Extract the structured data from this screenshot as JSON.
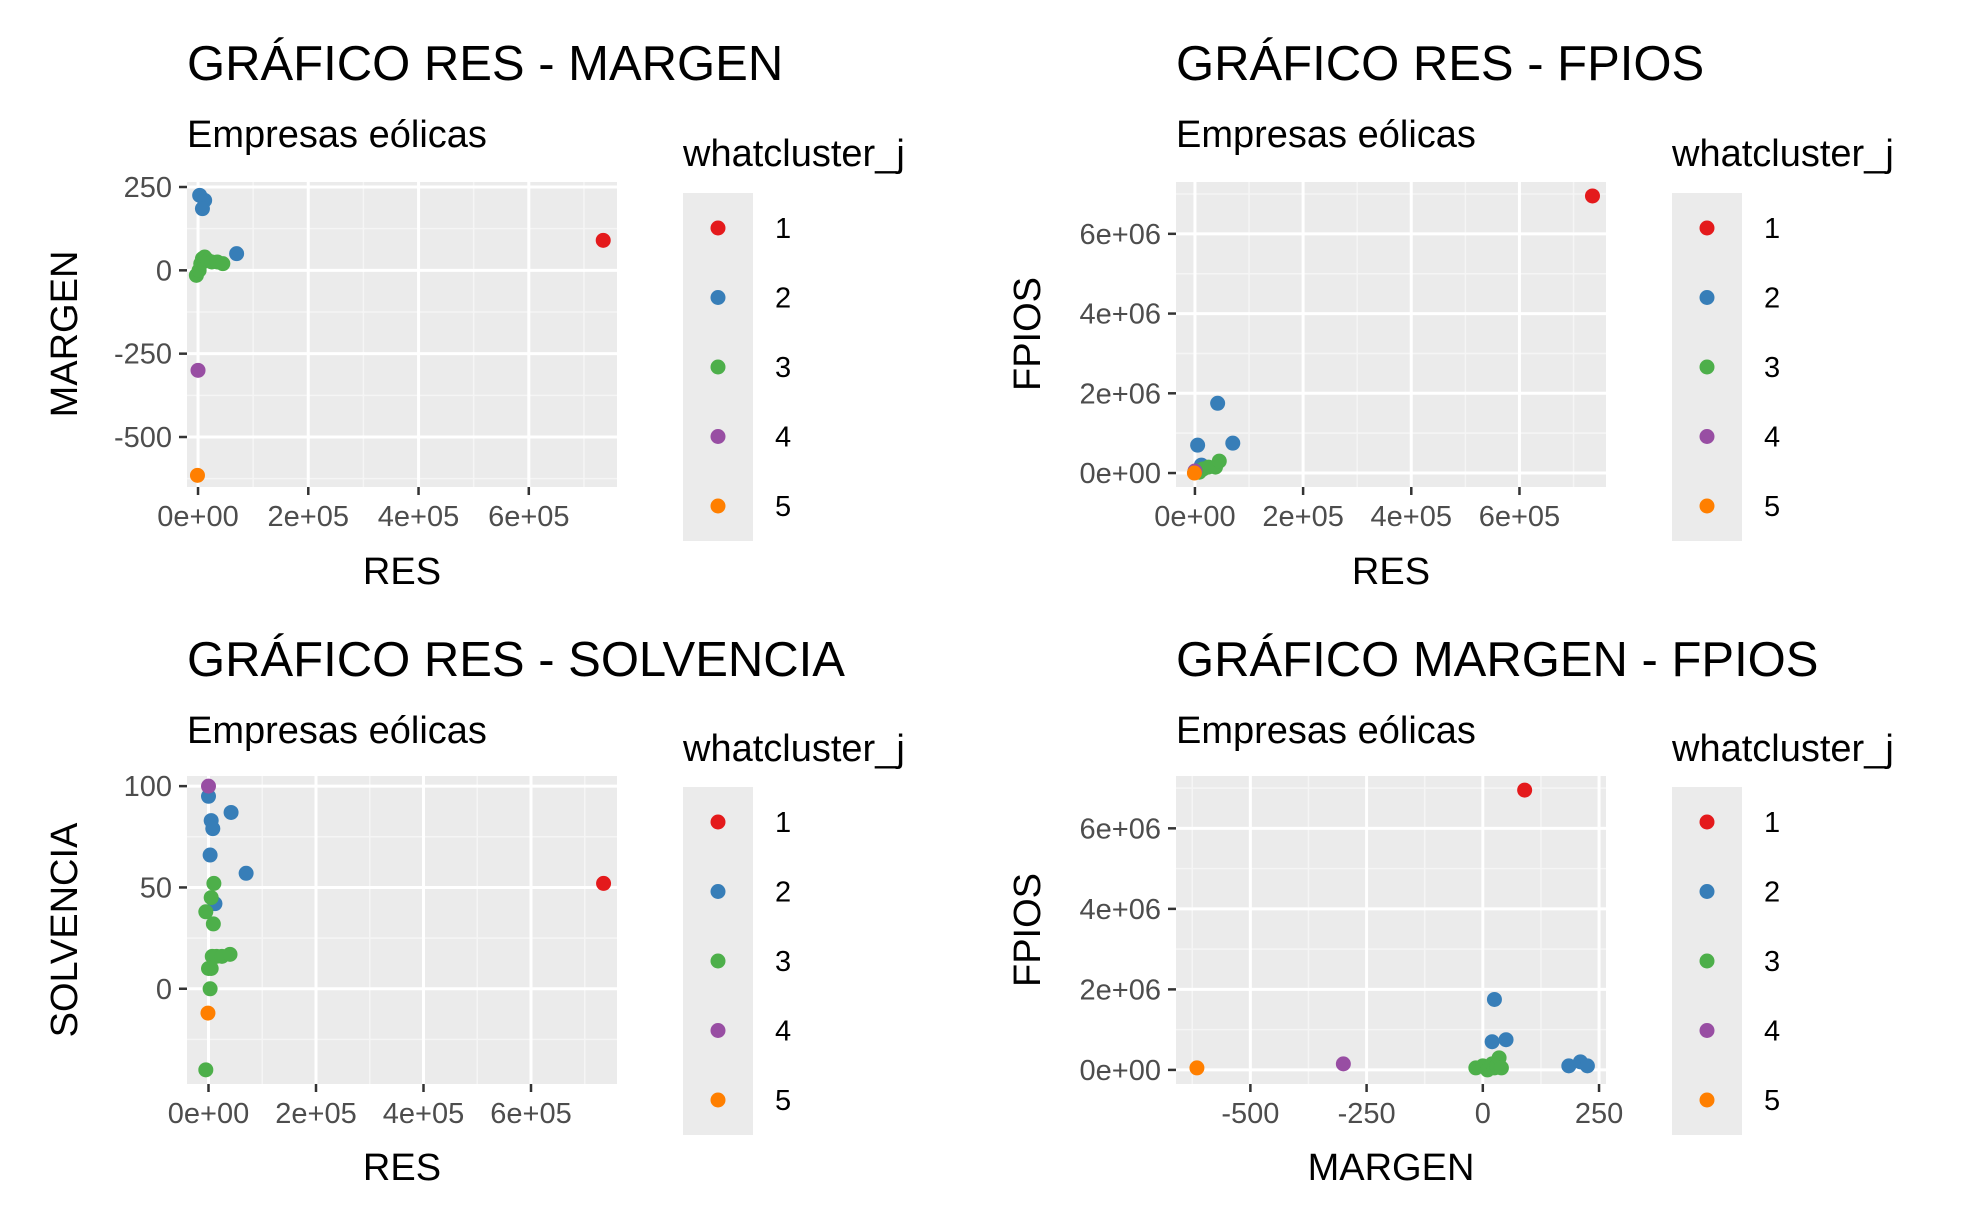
{
  "legend": {
    "title": "whatcluster_j",
    "items": [
      {
        "label": "1",
        "color": "#E41A1C"
      },
      {
        "label": "2",
        "color": "#377EB8"
      },
      {
        "label": "3",
        "color": "#4DAF4A"
      },
      {
        "label": "4",
        "color": "#984EA3"
      },
      {
        "label": "5",
        "color": "#FF7F00"
      }
    ]
  },
  "chart_data": [
    {
      "type": "scatter",
      "title": "GRÁFICO RES - MARGEN",
      "subtitle": "Empresas eólicas",
      "xlabel": "RES",
      "ylabel": "MARGEN",
      "xlim": [
        -20000,
        760000
      ],
      "ylim": [
        -650,
        265
      ],
      "xticks": [
        0,
        200000,
        400000,
        600000
      ],
      "xtick_labels": [
        "0e+00",
        "2e+05",
        "4e+05",
        "6e+05"
      ],
      "yticks": [
        -500,
        -250,
        0,
        250
      ],
      "ytick_labels": [
        "-500",
        "-250",
        "0",
        "250"
      ],
      "grid": true,
      "series": [
        {
          "name": "1",
          "points": [
            [
              735000,
              90
            ]
          ]
        },
        {
          "name": "2",
          "points": [
            [
              3000,
              225
            ],
            [
              12000,
              210
            ],
            [
              8000,
              185
            ],
            [
              70000,
              50
            ]
          ]
        },
        {
          "name": "3",
          "points": [
            [
              -3000,
              -15
            ],
            [
              2000,
              0
            ],
            [
              5000,
              20
            ],
            [
              8000,
              35
            ],
            [
              12000,
              40
            ],
            [
              18000,
              30
            ],
            [
              25000,
              25
            ],
            [
              35000,
              25
            ],
            [
              45000,
              20
            ]
          ]
        },
        {
          "name": "4",
          "points": [
            [
              0,
              -300
            ]
          ]
        },
        {
          "name": "5",
          "points": [
            [
              -1000,
              -615
            ]
          ]
        }
      ]
    },
    {
      "type": "scatter",
      "title": "GRÁFICO RES - FPIOS",
      "subtitle": "Empresas eólicas",
      "xlabel": "RES",
      "ylabel": "FPIOS",
      "xlim": [
        -35000,
        760000
      ],
      "ylim": [
        -350000,
        7300000
      ],
      "xticks": [
        0,
        200000,
        400000,
        600000
      ],
      "xtick_labels": [
        "0e+00",
        "2e+05",
        "4e+05",
        "6e+05"
      ],
      "yticks": [
        0,
        2000000,
        4000000,
        6000000
      ],
      "ytick_labels": [
        "0e+00",
        "2e+06",
        "4e+06",
        "6e+06"
      ],
      "grid": true,
      "series": [
        {
          "name": "1",
          "points": [
            [
              735000,
              6950000
            ]
          ]
        },
        {
          "name": "2",
          "points": [
            [
              42000,
              1750000
            ],
            [
              70000,
              750000
            ],
            [
              5000,
              700000
            ],
            [
              12000,
              200000
            ],
            [
              18000,
              150000
            ]
          ]
        },
        {
          "name": "3",
          "points": [
            [
              2000,
              50000
            ],
            [
              8000,
              20000
            ],
            [
              15000,
              100000
            ],
            [
              25000,
              150000
            ],
            [
              38000,
              150000
            ],
            [
              45000,
              300000
            ]
          ]
        },
        {
          "name": "4",
          "points": [
            [
              0,
              50000
            ]
          ]
        },
        {
          "name": "5",
          "points": [
            [
              -1000,
              0
            ]
          ]
        }
      ]
    },
    {
      "type": "scatter",
      "title": "GRÁFICO RES - SOLVENCIA",
      "subtitle": "Empresas eólicas",
      "xlabel": "RES",
      "ylabel": "SOLVENCIA",
      "xlim": [
        -40000,
        760000
      ],
      "ylim": [
        -47,
        105
      ],
      "xticks": [
        0,
        200000,
        400000,
        600000
      ],
      "xtick_labels": [
        "0e+00",
        "2e+05",
        "4e+05",
        "6e+05"
      ],
      "yticks": [
        0,
        50,
        100
      ],
      "ytick_labels": [
        "0",
        "50",
        "100"
      ],
      "grid": true,
      "series": [
        {
          "name": "1",
          "points": [
            [
              735000,
              52
            ]
          ]
        },
        {
          "name": "2",
          "points": [
            [
              0,
              95
            ],
            [
              42000,
              87
            ],
            [
              5000,
              83
            ],
            [
              8000,
              79
            ],
            [
              3000,
              66
            ],
            [
              70000,
              57
            ],
            [
              12000,
              42
            ]
          ]
        },
        {
          "name": "3",
          "points": [
            [
              10000,
              52
            ],
            [
              5000,
              45
            ],
            [
              -5000,
              38
            ],
            [
              9000,
              32
            ],
            [
              7000,
              16
            ],
            [
              15000,
              16
            ],
            [
              25000,
              16
            ],
            [
              40000,
              17
            ],
            [
              0,
              10
            ],
            [
              5000,
              10
            ],
            [
              3000,
              0
            ],
            [
              -5000,
              -40
            ]
          ]
        },
        {
          "name": "4",
          "points": [
            [
              0,
              100
            ]
          ]
        },
        {
          "name": "5",
          "points": [
            [
              -1000,
              -12
            ]
          ]
        }
      ]
    },
    {
      "type": "scatter",
      "title": "GRÁFICO MARGEN - FPIOS",
      "subtitle": "Empresas eólicas",
      "xlabel": "MARGEN",
      "ylabel": "FPIOS",
      "xlim": [
        -660,
        265
      ],
      "ylim": [
        -350000,
        7300000
      ],
      "xticks": [
        -500,
        -250,
        0,
        250
      ],
      "xtick_labels": [
        "-500",
        "-250",
        "0",
        "250"
      ],
      "yticks": [
        0,
        2000000,
        4000000,
        6000000
      ],
      "ytick_labels": [
        "0e+00",
        "2e+06",
        "4e+06",
        "6e+06"
      ],
      "grid": true,
      "series": [
        {
          "name": "1",
          "points": [
            [
              90,
              6950000
            ]
          ]
        },
        {
          "name": "2",
          "points": [
            [
              25,
              1750000
            ],
            [
              20,
              700000
            ],
            [
              50,
              750000
            ],
            [
              185,
              100000
            ],
            [
              210,
              200000
            ],
            [
              225,
              100000
            ]
          ]
        },
        {
          "name": "3",
          "points": [
            [
              -15,
              50000
            ],
            [
              0,
              100000
            ],
            [
              10,
              0
            ],
            [
              20,
              150000
            ],
            [
              25,
              50000
            ],
            [
              30,
              100000
            ],
            [
              35,
              300000
            ],
            [
              40,
              50000
            ]
          ]
        },
        {
          "name": "4",
          "points": [
            [
              -300,
              150000
            ]
          ]
        },
        {
          "name": "5",
          "points": [
            [
              -615,
              50000
            ]
          ]
        }
      ]
    }
  ]
}
